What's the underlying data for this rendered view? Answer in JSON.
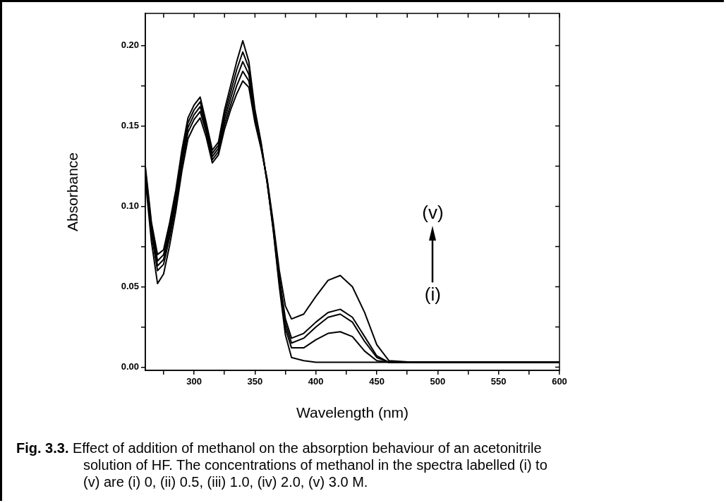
{
  "chart_data": {
    "type": "line",
    "xlabel": "Wavelength (nm)",
    "ylabel": "Absorbance",
    "xlim": [
      260,
      600
    ],
    "ylim": [
      -0.002,
      0.22
    ],
    "xticks": [
      {
        "value": 275,
        "label": null
      },
      300,
      {
        "value": 325,
        "label": null
      },
      350,
      {
        "value": 375,
        "label": null
      },
      400,
      {
        "value": 425,
        "label": null
      },
      450,
      {
        "value": 475,
        "label": null
      },
      500,
      {
        "value": 525,
        "label": null
      },
      550,
      {
        "value": 575,
        "label": null
      },
      600
    ],
    "yticks": [
      {
        "value": 0,
        "label": "0.00"
      },
      {
        "value": 0.025,
        "label": null
      },
      {
        "value": 0.05,
        "label": "0.05"
      },
      {
        "value": 0.075,
        "label": null
      },
      {
        "value": 0.1,
        "label": "0.10"
      },
      {
        "value": 0.125,
        "label": null
      },
      {
        "value": 0.15,
        "label": "0.15"
      },
      {
        "value": 0.175,
        "label": null
      },
      {
        "value": 0.2,
        "label": "0.20"
      }
    ],
    "grid": false,
    "legend": false,
    "marker": "none",
    "line_style": "solid",
    "x": [
      260,
      265,
      270,
      275,
      280,
      285,
      290,
      295,
      300,
      305,
      310,
      315,
      320,
      325,
      330,
      335,
      340,
      345,
      350,
      355,
      360,
      365,
      370,
      375,
      380,
      390,
      400,
      410,
      420,
      430,
      440,
      450,
      460,
      480,
      500,
      550,
      600
    ],
    "series": [
      {
        "color": "#000000",
        "values": [
          0.125,
          0.09,
          0.07,
          0.073,
          0.09,
          0.11,
          0.135,
          0.155,
          0.163,
          0.168,
          0.152,
          0.135,
          0.14,
          0.16,
          0.175,
          0.19,
          0.203,
          0.19,
          0.16,
          0.14,
          0.115,
          0.085,
          0.05,
          0.02,
          0.006,
          0.004,
          0.003,
          0.003,
          0.003,
          0.003,
          0.003,
          0.003,
          0.003,
          0.003,
          0.003,
          0.003,
          0.003
        ]
      },
      {
        "color": "#000000",
        "values": [
          0.123,
          0.088,
          0.066,
          0.07,
          0.087,
          0.107,
          0.132,
          0.152,
          0.16,
          0.165,
          0.15,
          0.133,
          0.138,
          0.157,
          0.171,
          0.185,
          0.196,
          0.186,
          0.158,
          0.139,
          0.115,
          0.086,
          0.052,
          0.024,
          0.012,
          0.012,
          0.017,
          0.021,
          0.022,
          0.019,
          0.01,
          0.004,
          0.003,
          0.003,
          0.003,
          0.003,
          0.003
        ]
      },
      {
        "color": "#000000",
        "values": [
          0.121,
          0.086,
          0.063,
          0.067,
          0.084,
          0.104,
          0.129,
          0.149,
          0.157,
          0.162,
          0.148,
          0.131,
          0.136,
          0.154,
          0.167,
          0.18,
          0.19,
          0.182,
          0.156,
          0.138,
          0.115,
          0.087,
          0.054,
          0.027,
          0.015,
          0.018,
          0.025,
          0.031,
          0.033,
          0.028,
          0.016,
          0.006,
          0.003,
          0.003,
          0.003,
          0.003,
          0.003
        ]
      },
      {
        "color": "#000000",
        "values": [
          0.119,
          0.083,
          0.06,
          0.064,
          0.081,
          0.101,
          0.126,
          0.146,
          0.154,
          0.159,
          0.146,
          0.129,
          0.134,
          0.151,
          0.163,
          0.175,
          0.184,
          0.178,
          0.154,
          0.137,
          0.116,
          0.088,
          0.056,
          0.03,
          0.018,
          0.021,
          0.028,
          0.034,
          0.036,
          0.031,
          0.019,
          0.007,
          0.003,
          0.003,
          0.003,
          0.003,
          0.003
        ]
      },
      {
        "color": "#000000",
        "values": [
          0.117,
          0.078,
          0.052,
          0.058,
          0.076,
          0.097,
          0.122,
          0.142,
          0.15,
          0.155,
          0.143,
          0.127,
          0.132,
          0.148,
          0.16,
          0.17,
          0.178,
          0.174,
          0.152,
          0.136,
          0.117,
          0.09,
          0.06,
          0.038,
          0.03,
          0.033,
          0.044,
          0.054,
          0.057,
          0.05,
          0.034,
          0.014,
          0.004,
          0.003,
          0.003,
          0.003,
          0.003
        ]
      }
    ],
    "annotations": [
      "(v)",
      "(i)",
      "Fig. 3.3.",
      "Effect of addition of methanol on the absorption behaviour of an acetonitrile solution of HF. The concentrations of methanol in the spectra labelled (i) to (v) are (i) 0, (ii) 0.5, (iii) 1.0, (iv) 2.0, (v) 3.0 M."
    ]
  }
}
